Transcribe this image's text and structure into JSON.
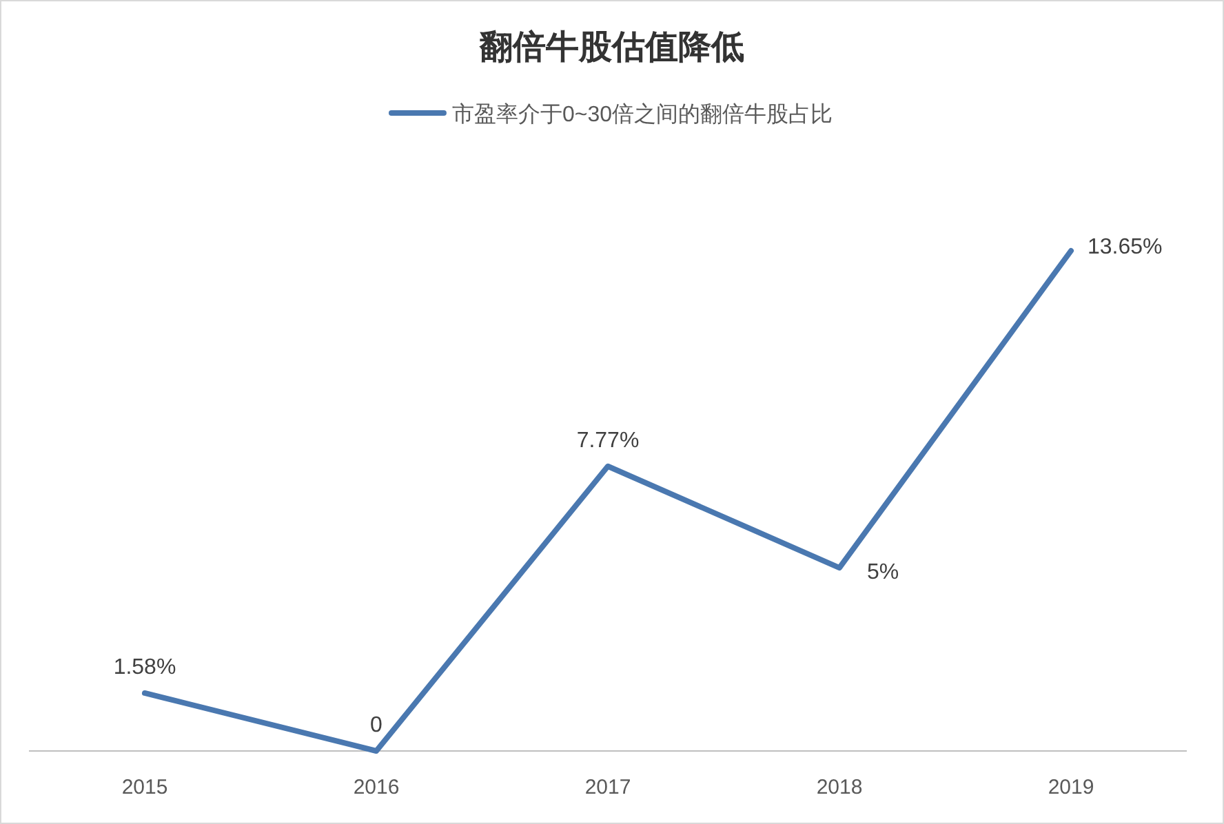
{
  "chart_data": {
    "type": "line",
    "title": "翻倍牛股估值降低",
    "categories": [
      "2015",
      "2016",
      "2017",
      "2018",
      "2019"
    ],
    "series": [
      {
        "name": "市盈率介于0~30倍之间的翻倍牛股占比",
        "color": "#4a78b0",
        "values": [
          1.58,
          0,
          7.77,
          5,
          13.65
        ],
        "value_labels": [
          "1.58%",
          "0",
          "7.77%",
          "5%",
          "13.65%"
        ]
      }
    ],
    "legend": "top",
    "marker": "none",
    "line_style": "solid"
  }
}
